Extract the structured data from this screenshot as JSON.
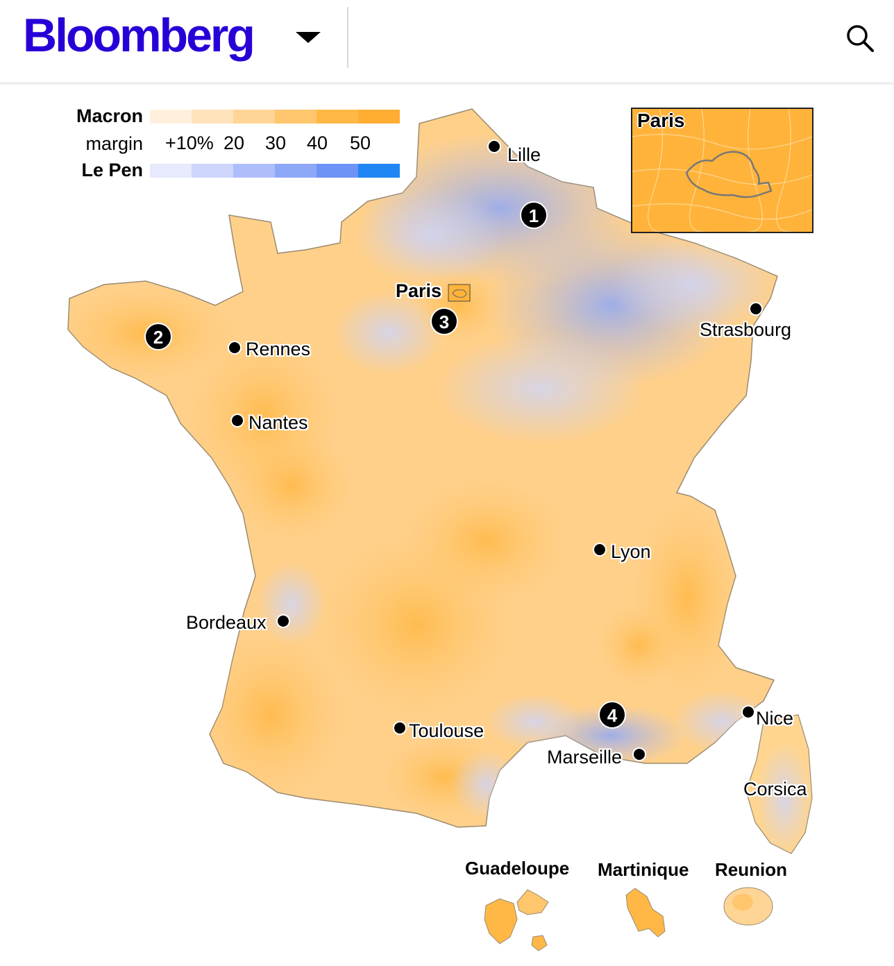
{
  "header": {
    "logo": "Bloomberg",
    "icons": {
      "menu": "chevron-down-icon",
      "search": "search-icon"
    },
    "brand_color": "#2800d7"
  },
  "legend": {
    "macron_label": "Macron",
    "margin_label": "margin",
    "lepen_label": "Le Pen",
    "ticks": [
      "+10%",
      "20",
      "30",
      "40",
      "50"
    ],
    "macron_colors": [
      "#fff0dd",
      "#ffe3bb",
      "#ffd595",
      "#ffc66d",
      "#ffb845",
      "#ffae33"
    ],
    "lepen_colors": [
      "#e6eafc",
      "#cdd5fb",
      "#aebefa",
      "#8ea8f8",
      "#6c93f5",
      "#1f86f4"
    ]
  },
  "map": {
    "cities": [
      {
        "name": "Lille"
      },
      {
        "name": "Strasbourg"
      },
      {
        "name": "Rennes"
      },
      {
        "name": "Nantes"
      },
      {
        "name": "Lyon"
      },
      {
        "name": "Bordeaux"
      },
      {
        "name": "Toulouse"
      },
      {
        "name": "Marseille"
      },
      {
        "name": "Nice"
      }
    ],
    "paris_label": "Paris",
    "corsica_label": "Corsica",
    "markers": [
      "1",
      "2",
      "3",
      "4"
    ],
    "inset_title": "Paris",
    "territories": [
      "Guadeloupe",
      "Martinique",
      "Reunion"
    ]
  }
}
